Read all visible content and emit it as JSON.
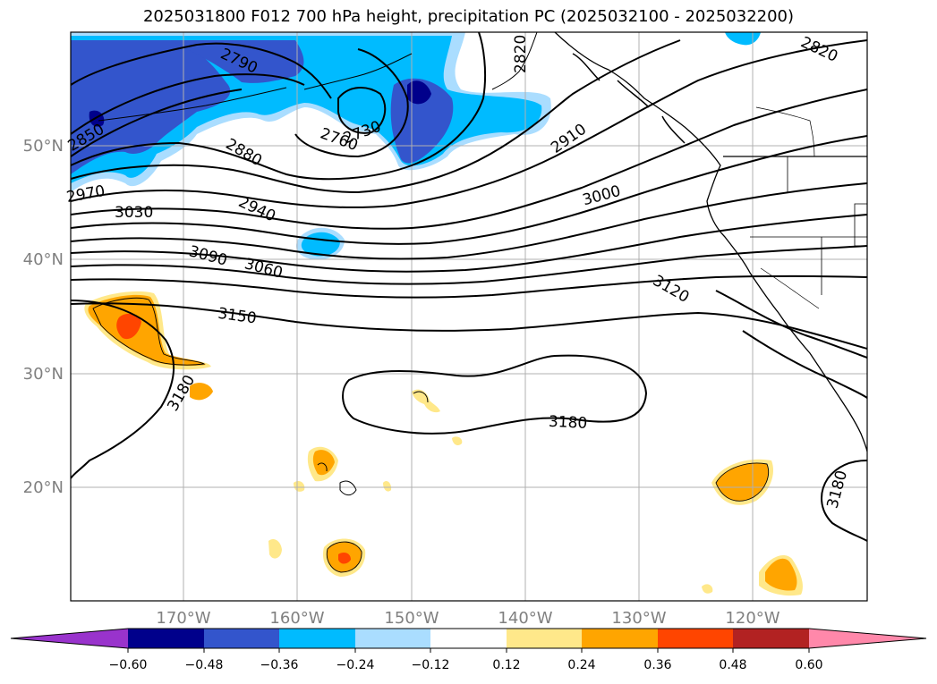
{
  "title": "2025031800 F012 700 hPa height, precipitation PC (2025032100 - 2025032200)",
  "axes": {
    "lon_labels": [
      "170°W",
      "160°W",
      "150°W",
      "140°W",
      "130°W",
      "120°W"
    ],
    "lat_labels": [
      "50°N",
      "40°N",
      "30°N",
      "20°N"
    ]
  },
  "contours": {
    "color": "#000000",
    "labels": [
      "2790",
      "2820",
      "2820",
      "2850",
      "2730",
      "2760",
      "2880",
      "2910",
      "2970",
      "3030",
      "3000",
      "2940",
      "3090",
      "3060",
      "3150",
      "3120",
      "3180",
      "3180",
      "3180"
    ]
  },
  "colorbar": {
    "ticks": [
      "−0.60",
      "−0.48",
      "−0.36",
      "−0.24",
      "−0.12",
      "0.12",
      "0.24",
      "0.36",
      "0.48",
      "0.60"
    ],
    "colors": [
      "#9933cc",
      "#00008b",
      "#3355cc",
      "#00bbff",
      "#aaddff",
      "#ffffff",
      "#ffe88a",
      "#ffa500",
      "#ff4500",
      "#b22222",
      "#ff88aa"
    ]
  }
}
